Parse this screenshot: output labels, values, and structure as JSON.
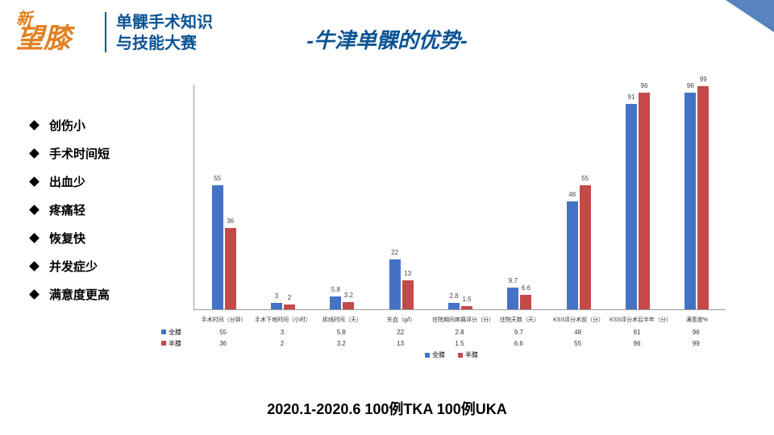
{
  "header": {
    "logo_line1": "新",
    "logo_line2": "望膝",
    "subtitle_line1": "单髁手术知识",
    "subtitle_line2": "与技能大赛"
  },
  "title": "-牛津单髁的优势-",
  "bullets": [
    "创伤小",
    "手术时间短",
    "出血少",
    "疼痛轻",
    "恢复快",
    "并发症少",
    "满意度更高"
  ],
  "chart": {
    "type": "bar",
    "series": [
      {
        "name": "全膝",
        "color": "#4473c5"
      },
      {
        "name": "半膝",
        "color": "#c44a4a"
      }
    ],
    "categories": [
      "手术时间（分钟）",
      "手术下地时间（小时）",
      "拆线时间（天）",
      "失血（g/l）",
      "住院期间疼痛评分（分）",
      "住院天数（天）",
      "KSS评分术前（分）",
      "KSS评分术后半年（分）",
      "满意度%"
    ],
    "values_a": [
      55,
      3,
      5.8,
      22,
      2.8,
      9.7,
      48,
      91,
      96
    ],
    "values_b": [
      36,
      2,
      3.2,
      13,
      1.5,
      6.6,
      55,
      96,
      99
    ],
    "labels_a": [
      "55",
      "3",
      "5.8",
      "22",
      "2.8",
      "9.7",
      "48",
      "91",
      "96"
    ],
    "labels_b": [
      "36",
      "2",
      "3.2",
      "13",
      "1.5",
      "6.6",
      "55",
      "96",
      "99"
    ],
    "ymax": 100,
    "grid_color": "#dddddd",
    "axis_color": "#999999"
  },
  "caption": "2020.1-2020.6  100例TKA 100例UKA"
}
